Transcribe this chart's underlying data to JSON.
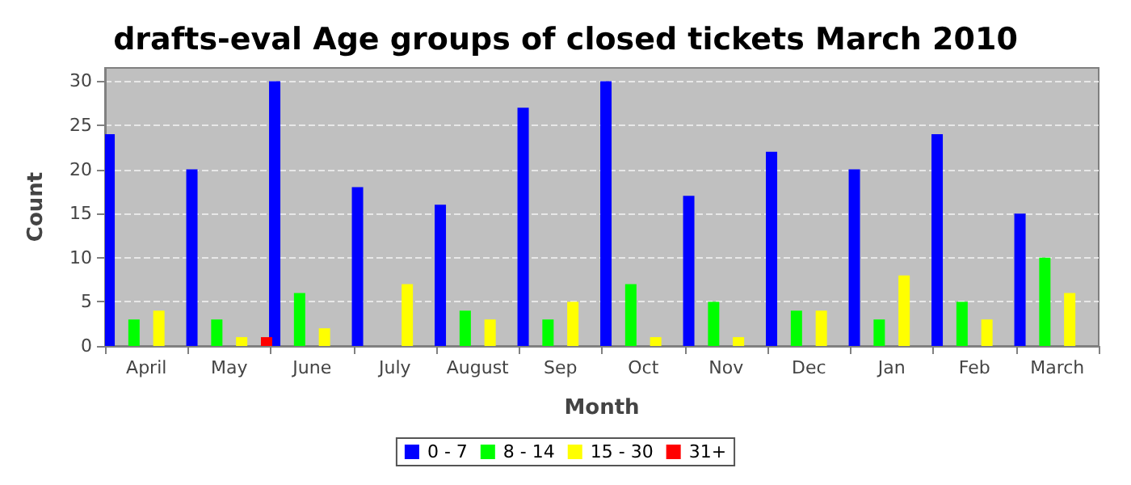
{
  "chart_data": {
    "type": "bar",
    "title": "drafts-eval Age groups of closed tickets March 2010",
    "xlabel": "Month",
    "ylabel": "Count",
    "categories": [
      "April",
      "May",
      "June",
      "July",
      "August",
      "Sep",
      "Oct",
      "Nov",
      "Dec",
      "Jan",
      "Feb",
      "March"
    ],
    "series": [
      {
        "name": "0 - 7",
        "color": "#0000ff",
        "values": [
          24,
          20,
          30,
          18,
          16,
          27,
          30,
          17,
          22,
          20,
          24,
          15
        ]
      },
      {
        "name": "8 - 14",
        "color": "#00ff00",
        "values": [
          3,
          3,
          6,
          0,
          4,
          3,
          7,
          5,
          4,
          3,
          5,
          10
        ]
      },
      {
        "name": "15 - 30",
        "color": "#ffff00",
        "values": [
          4,
          1,
          2,
          7,
          3,
          5,
          1,
          1,
          4,
          8,
          3,
          6
        ]
      },
      {
        "name": "31+",
        "color": "#ff0000",
        "values": [
          0,
          1,
          0,
          0,
          0,
          0,
          0,
          0,
          0,
          0,
          0,
          0
        ]
      }
    ],
    "ylim": [
      0,
      31.5
    ],
    "yticks": [
      0,
      5,
      10,
      15,
      20,
      25,
      30
    ],
    "grid": "y",
    "legend": "bottom"
  }
}
